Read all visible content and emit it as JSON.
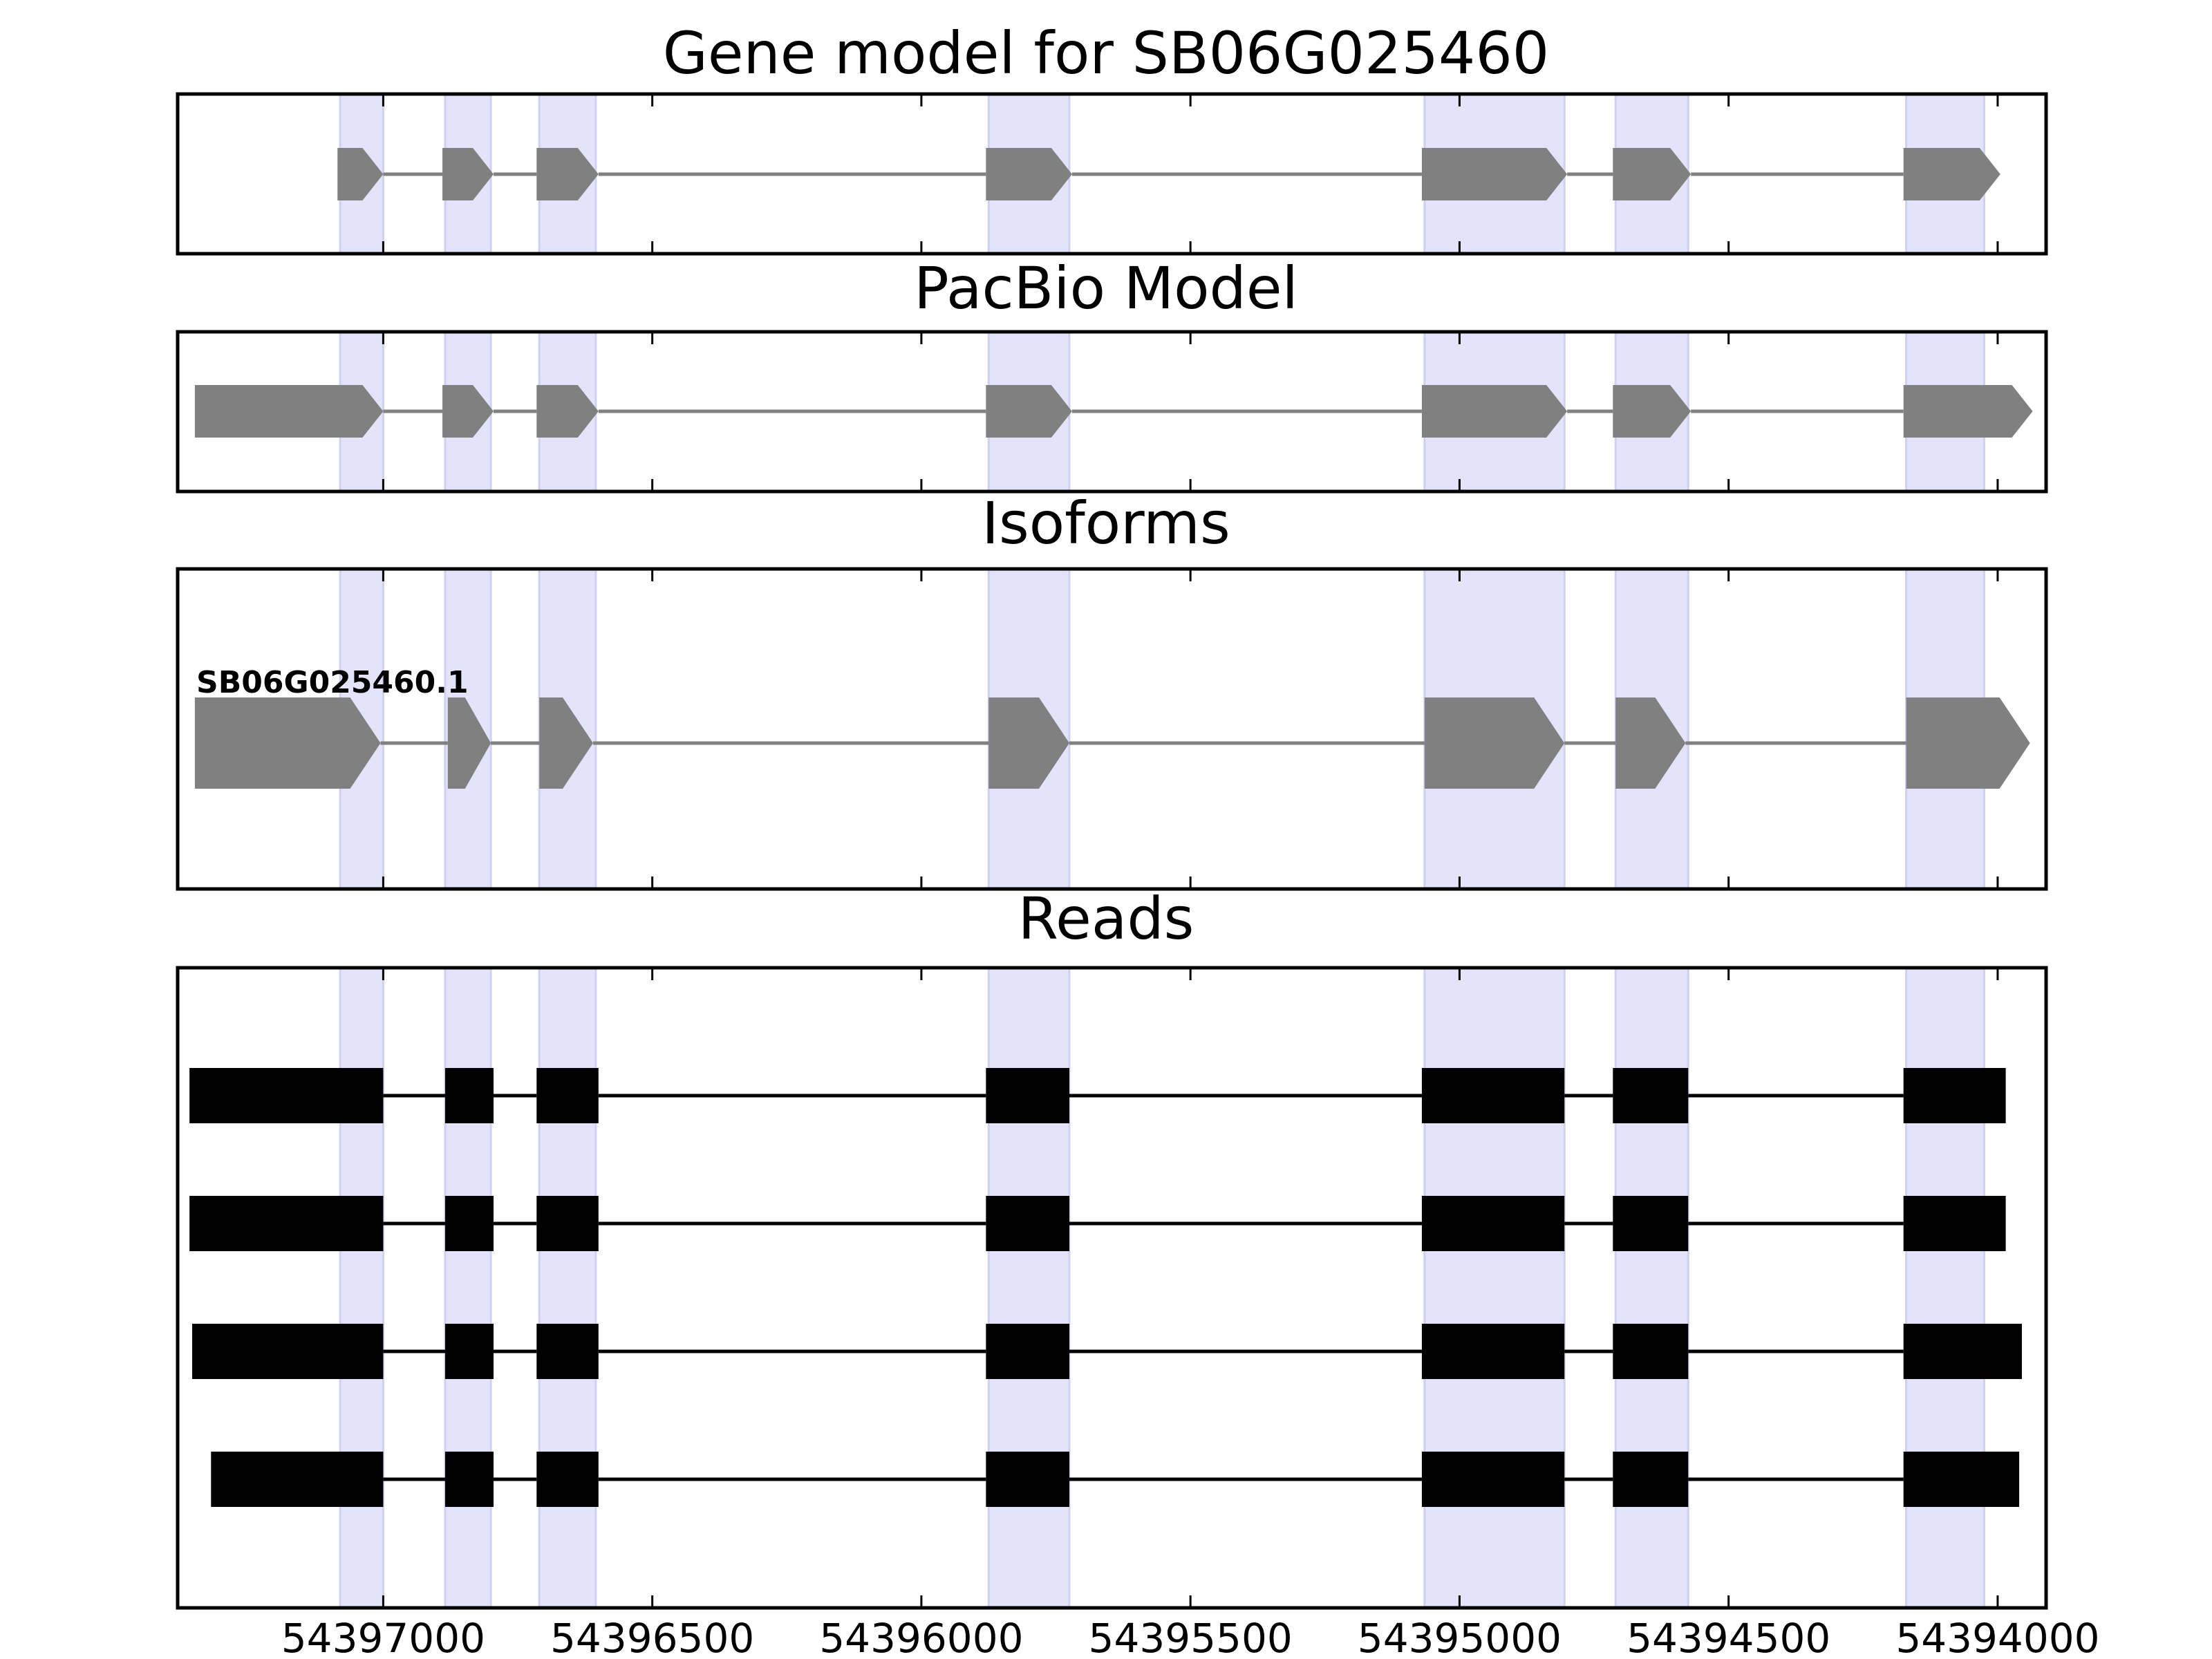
{
  "chart_data": {
    "type": "gene-model",
    "x_axis": {
      "reversed": true,
      "range": [
        54397382,
        54393910
      ],
      "ticks": [
        {
          "value": 54397000,
          "label": "54397000"
        },
        {
          "value": 54396500,
          "label": "54396500"
        },
        {
          "value": 54396000,
          "label": "54396000"
        },
        {
          "value": 54395500,
          "label": "54395500"
        },
        {
          "value": 54395000,
          "label": "54395000"
        },
        {
          "value": 54394500,
          "label": "54394500"
        },
        {
          "value": 54394000,
          "label": "54394000"
        }
      ]
    },
    "colors": {
      "exon_model": "#808080",
      "intron_model": "#808080",
      "read": "#000000",
      "highlight": "#e3e3fb",
      "highlight_edge": "#d0d0f0"
    },
    "highlight_regions": [
      [
        54397080,
        54397000
      ],
      [
        54396885,
        54396800
      ],
      [
        54396710,
        54396605
      ],
      [
        54395875,
        54395725
      ],
      [
        54395065,
        54394805
      ],
      [
        54394710,
        54394575
      ],
      [
        54394170,
        54394025
      ]
    ],
    "panels": [
      {
        "title": "Gene model for SB06G025460",
        "kind": "model",
        "strand": "-",
        "exons": [
          [
            54397085,
            54397000
          ],
          [
            54396890,
            54396795
          ],
          [
            54396715,
            54396600
          ],
          [
            54395880,
            54395720
          ],
          [
            54395070,
            54394800
          ],
          [
            54394715,
            54394570
          ],
          [
            54394175,
            54393995
          ]
        ]
      },
      {
        "title": "PacBio Model",
        "kind": "model",
        "strand": "-",
        "exons": [
          [
            54397350,
            54397000
          ],
          [
            54396890,
            54396795
          ],
          [
            54396715,
            54396600
          ],
          [
            54395880,
            54395720
          ],
          [
            54395070,
            54394800
          ],
          [
            54394715,
            54394570
          ],
          [
            54394175,
            54393935
          ]
        ]
      },
      {
        "title": "Isoforms",
        "kind": "isoform",
        "strand": "-",
        "isoforms": [
          {
            "name": "SB06G025460.1",
            "exons": [
              [
                54397350,
                54397005
              ],
              [
                54396880,
                54396800
              ],
              [
                54396710,
                54396610
              ],
              [
                54395875,
                54395725
              ],
              [
                54395065,
                54394805
              ],
              [
                54394710,
                54394580
              ],
              [
                54394170,
                54393940
              ]
            ]
          }
        ]
      },
      {
        "title": "Reads",
        "kind": "reads",
        "reads": [
          {
            "exons": [
              [
                54397360,
                54397000
              ],
              [
                54396885,
                54396795
              ],
              [
                54396715,
                54396600
              ],
              [
                54395880,
                54395725
              ],
              [
                54395070,
                54394805
              ],
              [
                54394715,
                54394575
              ],
              [
                54394175,
                54393985
              ]
            ]
          },
          {
            "exons": [
              [
                54397360,
                54397000
              ],
              [
                54396885,
                54396795
              ],
              [
                54396715,
                54396600
              ],
              [
                54395880,
                54395725
              ],
              [
                54395070,
                54394805
              ],
              [
                54394715,
                54394575
              ],
              [
                54394175,
                54393985
              ]
            ]
          },
          {
            "exons": [
              [
                54397355,
                54397000
              ],
              [
                54396885,
                54396795
              ],
              [
                54396715,
                54396600
              ],
              [
                54395880,
                54395725
              ],
              [
                54395070,
                54394805
              ],
              [
                54394715,
                54394575
              ],
              [
                54394175,
                54393955
              ]
            ]
          },
          {
            "exons": [
              [
                54397320,
                54397000
              ],
              [
                54396885,
                54396795
              ],
              [
                54396715,
                54396600
              ],
              [
                54395880,
                54395725
              ],
              [
                54395070,
                54394805
              ],
              [
                54394715,
                54394575
              ],
              [
                54394175,
                54393960
              ]
            ]
          }
        ]
      }
    ]
  }
}
